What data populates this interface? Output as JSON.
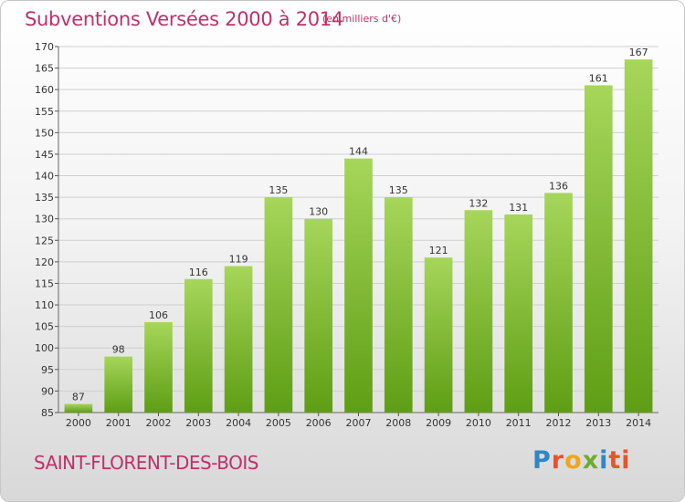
{
  "header": {
    "title": "Subventions Versées 2000 à 2014",
    "unit": "(en milliers d'€)"
  },
  "footer": {
    "commune": "SAINT-FLORENT-DES-BOIS",
    "logo_letters": [
      "P",
      "r",
      "o",
      "x",
      "i",
      "ti"
    ]
  },
  "colors": {
    "title": "#c0306a",
    "bar_top": "#a6d65a",
    "bar_bottom": "#5e9e14",
    "grid": "#cfcfcf"
  },
  "chart_data": {
    "type": "bar",
    "categories": [
      "2000",
      "2001",
      "2002",
      "2003",
      "2004",
      "2005",
      "2006",
      "2007",
      "2008",
      "2009",
      "2010",
      "2011",
      "2012",
      "2013",
      "2014"
    ],
    "values": [
      87,
      98,
      106,
      116,
      119,
      135,
      130,
      144,
      135,
      121,
      132,
      131,
      136,
      161,
      167
    ],
    "title": "Subventions Versées 2000 à 2014",
    "ylim": [
      85,
      170
    ],
    "yticks": [
      85,
      90,
      95,
      100,
      105,
      110,
      115,
      120,
      125,
      130,
      135,
      140,
      145,
      150,
      155,
      160,
      165,
      170
    ],
    "grid": true
  }
}
